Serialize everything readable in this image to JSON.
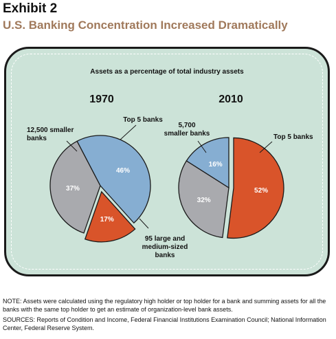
{
  "header": {
    "exhibit": "Exhibit 2",
    "title": "U.S. Banking Concentration Increased Dramatically"
  },
  "chart_data": {
    "type": "pie",
    "subtitle": "Assets as a percentage of total industry assets",
    "pies": [
      {
        "year": "1970",
        "slices": [
          {
            "name": "Top 5 banks",
            "label": [
              "Top 5 banks"
            ],
            "value": 17,
            "value_label": "17%",
            "color": "#d9542a",
            "exploded": true
          },
          {
            "name": "95 large and medium-sized banks",
            "label": [
              "95 large and",
              "medium-sized",
              "banks"
            ],
            "value": 37,
            "value_label": "37%",
            "color": "#a9aaae",
            "exploded": false
          },
          {
            "name": "12,500 smaller banks",
            "label": [
              "12,500 smaller",
              "banks"
            ],
            "value": 46,
            "value_label": "46%",
            "color": "#86aed2",
            "exploded": false
          }
        ]
      },
      {
        "year": "2010",
        "slices": [
          {
            "name": "Top 5 banks",
            "label": [
              "Top 5 banks"
            ],
            "value": 52,
            "value_label": "52%",
            "color": "#d9542a",
            "exploded": true
          },
          {
            "name": "95 large and medium-sized banks",
            "label": [],
            "value": 32,
            "value_label": "32%",
            "color": "#a9aaae",
            "exploded": false
          },
          {
            "name": "5,700 smaller banks",
            "label": [
              "5,700",
              "smaller banks"
            ],
            "value": 16,
            "value_label": "16%",
            "color": "#86aed2",
            "exploded": false
          }
        ]
      }
    ]
  },
  "footnotes": {
    "note": "NOTE:  Assets were calculated using the regulatory high holder or top holder for a bank and summing assets for all the banks with the same top holder to get an estimate of organization-level bank assets.",
    "sources": "SOURCES: Reports of Condition and Income, Federal Financial Institutions Examination Council; National Information Center, Federal Reserve System."
  }
}
